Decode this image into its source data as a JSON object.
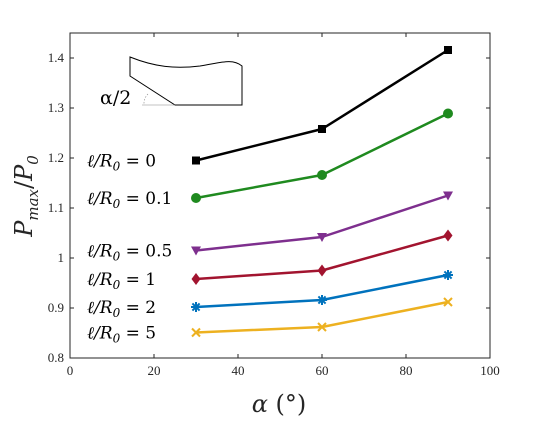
{
  "chart_data": {
    "type": "line",
    "x": [
      30,
      60,
      90
    ],
    "xlim": [
      0,
      100
    ],
    "ylim": [
      0.8,
      1.45
    ],
    "xticks": [
      "0",
      "20",
      "40",
      "60",
      "80",
      "100"
    ],
    "yticks": [
      "0.8",
      "0.9",
      "1",
      "1.1",
      "1.2",
      "1.3",
      "1.4"
    ],
    "xlabel": "α (°)",
    "ylabel": "Pmax/P0",
    "inset_label": "α/2",
    "grid": false,
    "series": [
      {
        "name": "ℓ/R0 = 0",
        "values": [
          1.195,
          1.258,
          1.416
        ],
        "color": "#000000",
        "marker": "square"
      },
      {
        "name": "ℓ/R0 = 0.1",
        "values": [
          1.12,
          1.166,
          1.289
        ],
        "color": "#1f8a1f",
        "marker": "circle"
      },
      {
        "name": "ℓ/R0 = 0.5",
        "values": [
          1.015,
          1.042,
          1.125
        ],
        "color": "#7e2f8e",
        "marker": "triangle-down"
      },
      {
        "name": "ℓ/R0 = 1",
        "values": [
          0.958,
          0.975,
          1.045
        ],
        "color": "#a2142f",
        "marker": "diamond"
      },
      {
        "name": "ℓ/R0 = 2",
        "values": [
          0.902,
          0.916,
          0.966
        ],
        "color": "#0072bd",
        "marker": "star"
      },
      {
        "name": "ℓ/R0 = 5",
        "values": [
          0.851,
          0.862,
          0.912
        ],
        "color": "#edb120",
        "marker": "cross"
      }
    ]
  }
}
